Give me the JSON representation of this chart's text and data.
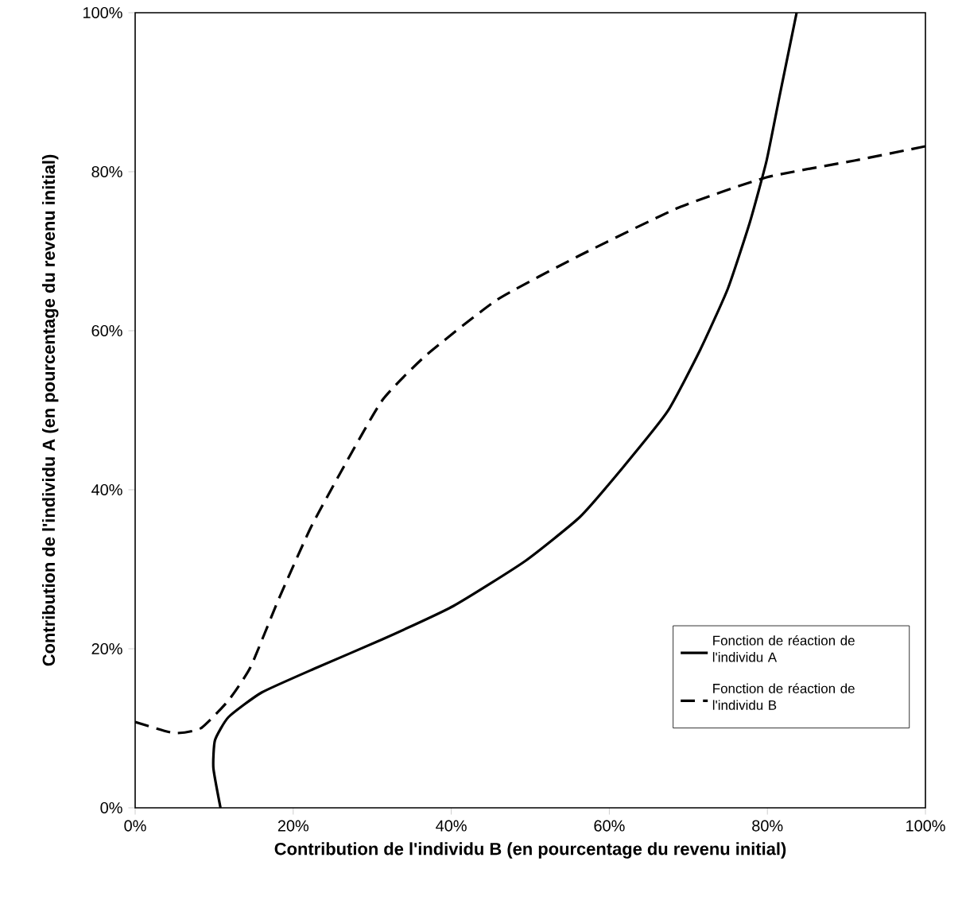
{
  "chart_data": {
    "type": "line",
    "xlabel": "Contribution de l'individu B (en pourcentage du revenu initial)",
    "ylabel": "Contribution de l'individu A (en pourcentage du revenu initial)",
    "xlim": [
      0,
      100
    ],
    "ylim": [
      0,
      100
    ],
    "xticks": [
      {
        "value": 0,
        "label": "0%"
      },
      {
        "value": 20,
        "label": "20%"
      },
      {
        "value": 40,
        "label": "40%"
      },
      {
        "value": 60,
        "label": "60%"
      },
      {
        "value": 80,
        "label": "80%"
      },
      {
        "value": 100,
        "label": "100%"
      }
    ],
    "yticks": [
      {
        "value": 0,
        "label": "0%"
      },
      {
        "value": 20,
        "label": "20%"
      },
      {
        "value": 40,
        "label": "40%"
      },
      {
        "value": 60,
        "label": "60%"
      },
      {
        "value": 80,
        "label": "80%"
      },
      {
        "value": 100,
        "label": "100%"
      }
    ],
    "legend": "bottom right",
    "grid": false,
    "marker": "none",
    "series": [
      {
        "name": "Fonction de réaction de l'individu A",
        "color": "#000000",
        "line_style": "solid",
        "x": [
          10.8,
          9.9,
          10.1,
          11.8,
          16,
          22.9,
          31.3,
          40.3,
          49.3,
          56.3,
          61.8,
          67.4,
          71.5,
          75,
          77.8,
          79.9,
          81.6,
          83.7
        ],
        "values": [
          0,
          5,
          8.5,
          11.4,
          14.5,
          17.6,
          21.2,
          25.4,
          31,
          36.6,
          42.9,
          49.9,
          57.6,
          65.3,
          73.7,
          81.4,
          89.8,
          100
        ]
      },
      {
        "name": "Fonction de réaction de l'individu B",
        "color": "#000000",
        "line_style": "dashed",
        "x": [
          0,
          4.9,
          8.3,
          11.8,
          14.6,
          18.1,
          22.2,
          26.4,
          31.3,
          36.8,
          45.8,
          56.3,
          68.8,
          79.9,
          91,
          100
        ],
        "values": [
          10.8,
          9.4,
          10,
          13.5,
          17.7,
          26.1,
          35.2,
          42.9,
          51.3,
          56.9,
          63.9,
          69.5,
          75.5,
          79.3,
          81.4,
          83.2
        ]
      }
    ]
  }
}
